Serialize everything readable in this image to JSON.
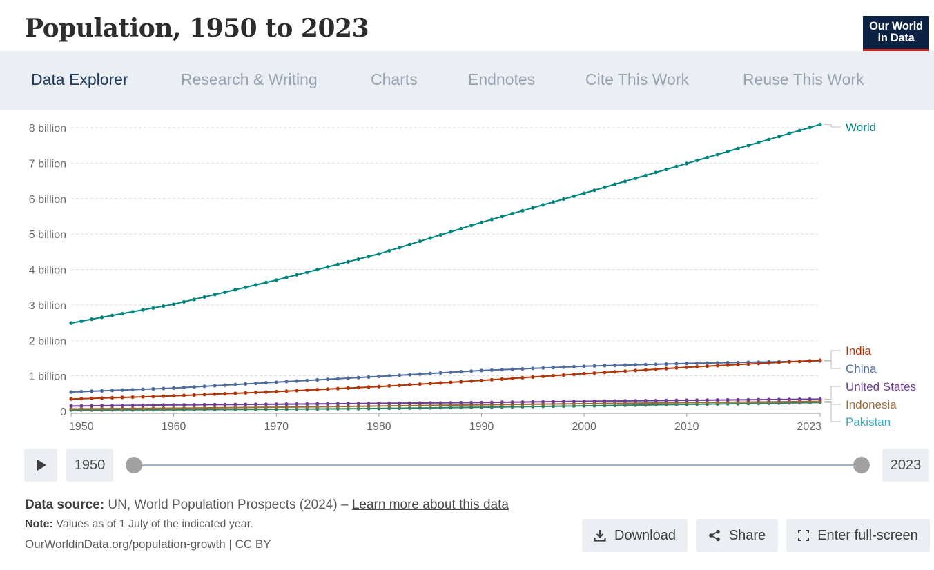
{
  "header": {
    "title": "Population, 1950 to 2023",
    "logo_line1": "Our World",
    "logo_line2": "in Data"
  },
  "tabs": [
    {
      "label": "Data Explorer",
      "active": true
    },
    {
      "label": "Research & Writing"
    },
    {
      "label": "Charts"
    },
    {
      "label": "Endnotes"
    },
    {
      "label": "Cite This Work"
    },
    {
      "label": "Reuse This Work"
    }
  ],
  "chart_data": {
    "type": "line",
    "xlim": [
      1950,
      2023
    ],
    "ylim": [
      0,
      8000000000
    ],
    "x_ticks": [
      1950,
      1960,
      1970,
      1980,
      1990,
      2000,
      2010,
      2023
    ],
    "y_ticks": [
      {
        "value": 0,
        "label": "0"
      },
      {
        "value": 1000000000,
        "label": "1 billion"
      },
      {
        "value": 2000000000,
        "label": "2 billion"
      },
      {
        "value": 3000000000,
        "label": "3 billion"
      },
      {
        "value": 4000000000,
        "label": "4 billion"
      },
      {
        "value": 5000000000,
        "label": "5 billion"
      },
      {
        "value": 6000000000,
        "label": "6 billion"
      },
      {
        "value": 7000000000,
        "label": "7 billion"
      },
      {
        "value": 8000000000,
        "label": "8 billion"
      }
    ],
    "grid": "horizontal dashed",
    "markers": true,
    "legend": "right, end-of-line labels",
    "series": [
      {
        "name": "World",
        "color": "#00847e",
        "points": [
          [
            1950,
            2490000000
          ],
          [
            1960,
            3020000000
          ],
          [
            1970,
            3700000000
          ],
          [
            1980,
            4440000000
          ],
          [
            1990,
            5330000000
          ],
          [
            2000,
            6150000000
          ],
          [
            2010,
            6990000000
          ],
          [
            2023,
            8090000000
          ]
        ]
      },
      {
        "name": "India",
        "color": "#b13507",
        "points": [
          [
            1950,
            346000000
          ],
          [
            1960,
            435000000
          ],
          [
            1970,
            555000000
          ],
          [
            1980,
            697000000
          ],
          [
            1990,
            870000000
          ],
          [
            2000,
            1060000000
          ],
          [
            2010,
            1240000000
          ],
          [
            2023,
            1440000000
          ]
        ]
      },
      {
        "name": "China",
        "color": "#4c6a9c",
        "points": [
          [
            1950,
            544000000
          ],
          [
            1960,
            654000000
          ],
          [
            1970,
            822000000
          ],
          [
            1980,
            982000000
          ],
          [
            1990,
            1150000000
          ],
          [
            2000,
            1270000000
          ],
          [
            2010,
            1350000000
          ],
          [
            2023,
            1420000000
          ]
        ]
      },
      {
        "name": "United States",
        "color": "#6d3e91",
        "points": [
          [
            1950,
            148000000
          ],
          [
            1960,
            179000000
          ],
          [
            1970,
            201000000
          ],
          [
            1980,
            223000000
          ],
          [
            1990,
            248000000
          ],
          [
            2000,
            282000000
          ],
          [
            2010,
            311000000
          ],
          [
            2023,
            343000000
          ]
        ]
      },
      {
        "name": "Indonesia",
        "color": "#996d39",
        "points": [
          [
            1950,
            69000000
          ],
          [
            1960,
            88000000
          ],
          [
            1970,
            115000000
          ],
          [
            1980,
            148000000
          ],
          [
            1990,
            182000000
          ],
          [
            2000,
            214000000
          ],
          [
            2010,
            244000000
          ],
          [
            2023,
            281000000
          ]
        ]
      },
      {
        "name": "Pakistan",
        "color": "#38aaba",
        "line_color": "#2c8465",
        "points": [
          [
            1950,
            37000000
          ],
          [
            1960,
            45000000
          ],
          [
            1970,
            59000000
          ],
          [
            1980,
            80000000
          ],
          [
            1990,
            115000000
          ],
          [
            2000,
            154000000
          ],
          [
            2010,
            194000000
          ],
          [
            2023,
            247000000
          ]
        ]
      }
    ]
  },
  "controls": {
    "start_year": "1950",
    "end_year": "2023",
    "range_start_fraction": 0,
    "range_end_fraction": 1
  },
  "footer": {
    "source_label": "Data source:",
    "source_text": "UN, World Population Prospects (2024) –",
    "source_link": "Learn more about this data",
    "note_label": "Note:",
    "note_text": "Values as of 1 July of the indicated year.",
    "url_text": "OurWorldinData.org/population-growth | CC BY"
  },
  "actions": {
    "download": "Download",
    "share": "Share",
    "fullscreen": "Enter full-screen"
  }
}
